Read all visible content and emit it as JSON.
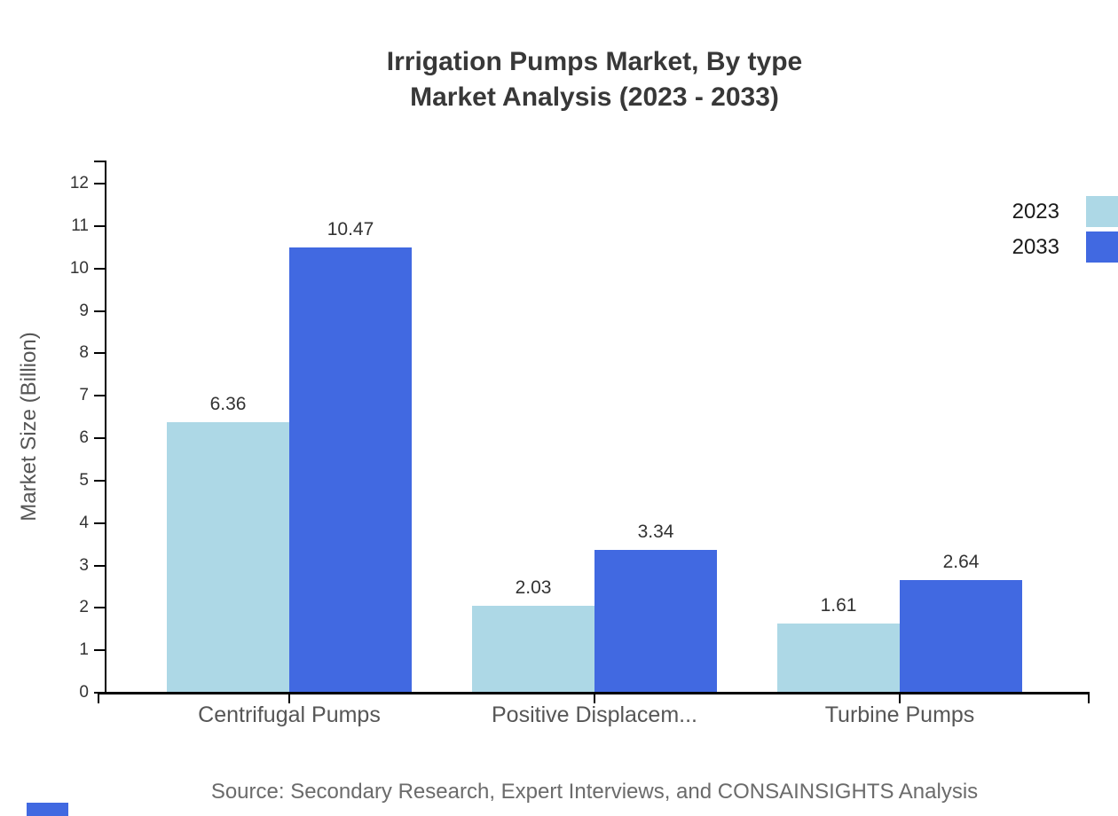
{
  "header": {
    "title_line1": "Irrigation Pumps Market, By type",
    "title_line2": "Market Analysis (2023 - 2033)"
  },
  "footer": {
    "source": "Source: Secondary Research, Expert Interviews, and CONSAINSIGHTS Analysis"
  },
  "chart_data": {
    "type": "bar",
    "title": "Irrigation Pumps Market, By type Market Analysis (2023 - 2033)",
    "categories": [
      "Centrifugal Pumps",
      "Positive Displacem...",
      "Turbine Pumps"
    ],
    "series": [
      {
        "name": "2023",
        "color": "#ADD8E6",
        "values": [
          6.36,
          2.03,
          1.61
        ]
      },
      {
        "name": "2033",
        "color": "#4169E1",
        "values": [
          10.47,
          3.34,
          2.64
        ]
      }
    ],
    "value_labels": [
      "6.36",
      "10.47",
      "2.03",
      "3.34",
      "1.61",
      "2.64"
    ],
    "xlabel": "",
    "ylabel": "Market Size (Billion)",
    "ylim": [
      0,
      12
    ],
    "yticks": [
      0,
      1,
      2,
      3,
      4,
      5,
      6,
      7,
      8,
      9,
      10,
      11,
      12
    ],
    "grid": false,
    "legend_position": "top-right",
    "legend_entries": [
      "2023",
      "2033"
    ],
    "bar_value_color": "#333333",
    "axis_color": "#000000",
    "accent_color": "#4169E1"
  }
}
